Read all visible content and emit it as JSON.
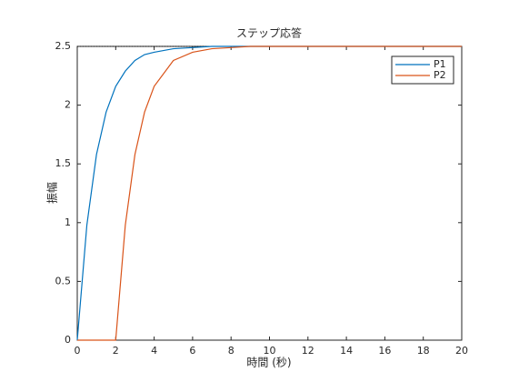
{
  "chart_data": {
    "type": "line",
    "title": "ステップ応答",
    "xlabel": "時間 (秒)",
    "ylabel": "振幅",
    "x": [
      0,
      0.5,
      1,
      1.5,
      2,
      2.5,
      3,
      3.5,
      4,
      5,
      6,
      7,
      8,
      9,
      10,
      12,
      14,
      16,
      18,
      20
    ],
    "series": [
      {
        "name": "P1",
        "color": "#0072bd",
        "values": [
          0,
          0.98,
          1.58,
          1.94,
          2.16,
          2.29,
          2.38,
          2.43,
          2.45,
          2.48,
          2.49,
          2.5,
          2.5,
          2.5,
          2.5,
          2.5,
          2.5,
          2.5,
          2.5,
          2.5
        ]
      },
      {
        "name": "P2",
        "color": "#d95319",
        "values": [
          0,
          0,
          0,
          0,
          0,
          0.98,
          1.58,
          1.94,
          2.16,
          2.38,
          2.45,
          2.48,
          2.49,
          2.5,
          2.5,
          2.5,
          2.5,
          2.5,
          2.5,
          2.5
        ]
      }
    ],
    "steady_state": 2.5,
    "xlim": [
      0,
      20
    ],
    "xticks": [
      0,
      2,
      4,
      6,
      8,
      10,
      12,
      14,
      16,
      18,
      20
    ],
    "ylim": [
      0,
      2.5
    ],
    "yticks": [
      0,
      0.5,
      1,
      1.5,
      2,
      2.5
    ],
    "grid": false,
    "legend": "northeast"
  }
}
